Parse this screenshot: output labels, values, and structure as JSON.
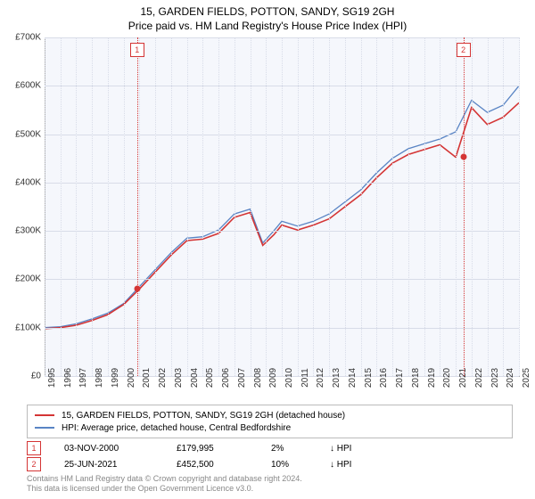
{
  "title_line1": "15, GARDEN FIELDS, POTTON, SANDY, SG19 2GH",
  "title_line2": "Price paid vs. HM Land Registry's House Price Index (HPI)",
  "chart": {
    "type": "line",
    "background_color": "#f5f7fc",
    "grid_color": "#d8dce8",
    "axis_color": "#aaaaaa",
    "ylim": [
      0,
      700000
    ],
    "ytick_step": 100000,
    "ytick_labels": [
      "£0",
      "£100K",
      "£200K",
      "£300K",
      "£400K",
      "£500K",
      "£600K",
      "£700K"
    ],
    "xlim": [
      1995,
      2025
    ],
    "xtick_labels": [
      "1995",
      "1996",
      "1997",
      "1998",
      "1999",
      "2000",
      "2001",
      "2002",
      "2003",
      "2004",
      "2005",
      "2006",
      "2007",
      "2008",
      "2009",
      "2010",
      "2011",
      "2012",
      "2013",
      "2014",
      "2015",
      "2016",
      "2017",
      "2018",
      "2019",
      "2020",
      "2021",
      "2022",
      "2023",
      "2024",
      "2025"
    ],
    "series": [
      {
        "name": "hpi",
        "color": "#5984c4",
        "width": 1.3,
        "x": [
          1995,
          1996,
          1997,
          1998,
          1999,
          2000,
          2001,
          2002,
          2003,
          2004,
          2005,
          2006,
          2007,
          2008,
          2008.8,
          2009.5,
          2010,
          2011,
          2012,
          2013,
          2014,
          2015,
          2016,
          2017,
          2018,
          2019,
          2020,
          2021,
          2022,
          2023,
          2024,
          2025
        ],
        "y": [
          100000,
          102000,
          108000,
          118000,
          130000,
          150000,
          185000,
          220000,
          255000,
          285000,
          288000,
          302000,
          335000,
          345000,
          275000,
          300000,
          320000,
          310000,
          320000,
          335000,
          360000,
          385000,
          420000,
          450000,
          470000,
          480000,
          490000,
          505000,
          570000,
          545000,
          560000,
          600000
        ]
      },
      {
        "name": "property",
        "color": "#d43535",
        "width": 1.6,
        "x": [
          1995,
          1996,
          1997,
          1998,
          1999,
          2000,
          2001,
          2002,
          2003,
          2004,
          2005,
          2006,
          2007,
          2008,
          2008.8,
          2009.5,
          2010,
          2011,
          2012,
          2013,
          2014,
          2015,
          2016,
          2017,
          2018,
          2019,
          2020,
          2021,
          2022,
          2023,
          2024,
          2025
        ],
        "y": [
          98000,
          100000,
          105000,
          115000,
          127000,
          148000,
          180000,
          215000,
          250000,
          280000,
          283000,
          295000,
          328000,
          338000,
          270000,
          292000,
          312000,
          302000,
          312000,
          325000,
          350000,
          375000,
          410000,
          440000,
          458000,
          468000,
          478000,
          452500,
          555000,
          520000,
          535000,
          565000
        ]
      }
    ],
    "markers": [
      {
        "n": "1",
        "x": 2000.85,
        "y": 179995
      },
      {
        "n": "2",
        "x": 2021.48,
        "y": 452500
      }
    ]
  },
  "legend": {
    "items": [
      {
        "color": "#d43535",
        "label": "15, GARDEN FIELDS, POTTON, SANDY, SG19 2GH (detached house)"
      },
      {
        "color": "#5984c4",
        "label": "HPI: Average price, detached house, Central Bedfordshire"
      }
    ]
  },
  "sales": [
    {
      "n": "1",
      "date": "03-NOV-2000",
      "price": "£179,995",
      "pct": "2%",
      "dir": "↓ HPI"
    },
    {
      "n": "2",
      "date": "25-JUN-2021",
      "price": "£452,500",
      "pct": "10%",
      "dir": "↓ HPI"
    }
  ],
  "footer_line1": "Contains HM Land Registry data © Crown copyright and database right 2024.",
  "footer_line2": "This data is licensed under the Open Government Licence v3.0.",
  "fonts": {
    "title": 12,
    "axis": 10,
    "legend": 10,
    "footer": 9
  }
}
